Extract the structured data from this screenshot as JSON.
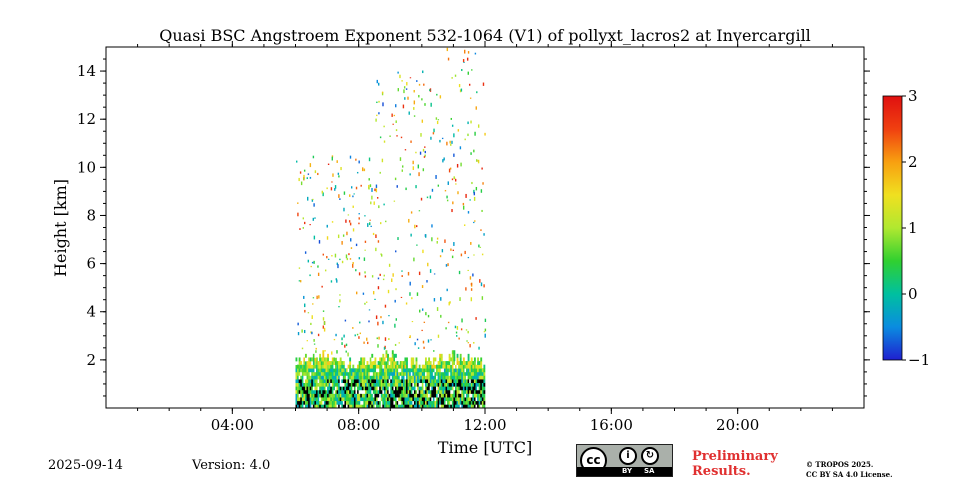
{
  "chart_data": {
    "type": "heatmap",
    "title": "Quasi BSC Angstroem Exponent 532-1064 (V1) of pollyxt_lacros2 at Invercargill",
    "xlabel": "Time [UTC]",
    "ylabel": "Height [km]",
    "x_range_hours": [
      0,
      24
    ],
    "y_range_km": [
      0,
      15
    ],
    "x_ticks": [
      {
        "hour": 4,
        "label": "04:00"
      },
      {
        "hour": 8,
        "label": "08:00"
      },
      {
        "hour": 12,
        "label": "12:00"
      },
      {
        "hour": 16,
        "label": "16:00"
      },
      {
        "hour": 20,
        "label": "20:00"
      }
    ],
    "y_ticks": [
      {
        "value": 2,
        "label": "2"
      },
      {
        "value": 4,
        "label": "4"
      },
      {
        "value": 6,
        "label": "6"
      },
      {
        "value": 8,
        "label": "8"
      },
      {
        "value": 10,
        "label": "10"
      },
      {
        "value": 12,
        "label": "12"
      },
      {
        "value": 14,
        "label": "14"
      }
    ],
    "colorbar": {
      "range": [
        -1,
        3
      ],
      "ticks": [
        {
          "value": 3,
          "label": "3"
        },
        {
          "value": 2,
          "label": "2"
        },
        {
          "value": 1,
          "label": "1"
        },
        {
          "value": 0,
          "label": "0"
        },
        {
          "value": -1,
          "label": "−1"
        }
      ],
      "colormap": [
        "#1f1fd0",
        "#0a8ce0",
        "#00c0a0",
        "#30d030",
        "#b0e830",
        "#f0e020",
        "#f8a010",
        "#f04010",
        "#e01010"
      ]
    },
    "data_extent": {
      "time_start_hour": 6.0,
      "time_end_hour": 12.0,
      "boundary_layer_top_km": 2.2,
      "sparse_signal_top_km": 15.0,
      "typical_value_near_surface": 0.3
    },
    "grid": false
  },
  "footer": {
    "date": "2025-09-14",
    "version": "Version: 4.0",
    "license_badge": {
      "cc": "cc",
      "by": "BY",
      "sa": "SA"
    },
    "preliminary_line1": "Preliminary",
    "preliminary_line2": "Results.",
    "copyright_line1": "© TROPOS 2025.",
    "copyright_line2": "CC BY SA 4.0 License."
  },
  "colors": {
    "preliminary": "#e03030"
  }
}
